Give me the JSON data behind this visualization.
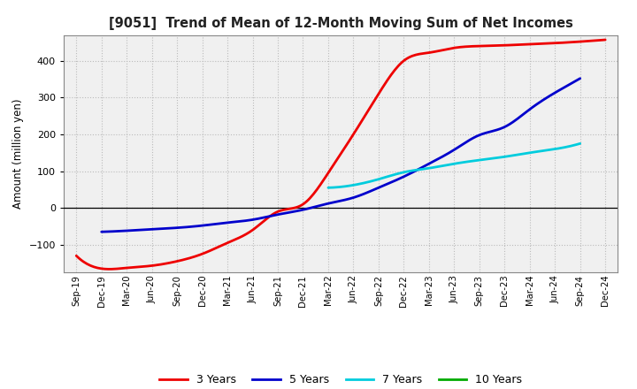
{
  "title": "[9051]  Trend of Mean of 12-Month Moving Sum of Net Incomes",
  "ylabel": "Amount (million yen)",
  "ylim": [
    -175,
    470
  ],
  "yticks": [
    -100,
    0,
    100,
    200,
    300,
    400
  ],
  "background_color": "#ffffff",
  "plot_bg_color": "#f0f0f0",
  "grid_color": "#bbbbbb",
  "x_labels": [
    "Sep-19",
    "Dec-19",
    "Mar-20",
    "Jun-20",
    "Sep-20",
    "Dec-20",
    "Mar-21",
    "Jun-21",
    "Sep-21",
    "Dec-21",
    "Mar-22",
    "Jun-22",
    "Sep-22",
    "Dec-22",
    "Mar-23",
    "Jun-23",
    "Sep-23",
    "Dec-23",
    "Mar-24",
    "Jun-24",
    "Sep-24",
    "Dec-24"
  ],
  "series": {
    "3 Years": {
      "color": "#ee0000",
      "linewidth": 2.0,
      "data_y": [
        -130,
        -165,
        -163,
        -157,
        -145,
        -125,
        -95,
        -60,
        -10,
        10,
        95,
        200,
        310,
        400,
        422,
        435,
        440,
        442,
        445,
        448,
        452,
        457
      ]
    },
    "5 Years": {
      "color": "#0000cc",
      "linewidth": 2.0,
      "data_y": [
        null,
        -65,
        -62,
        -58,
        -54,
        -48,
        -40,
        -32,
        -18,
        -5,
        12,
        28,
        55,
        85,
        120,
        158,
        198,
        220,
        268,
        313,
        352,
        null
      ]
    },
    "7 Years": {
      "color": "#00ccdd",
      "linewidth": 2.0,
      "data_y": [
        null,
        null,
        null,
        null,
        null,
        null,
        null,
        null,
        null,
        null,
        55,
        62,
        78,
        97,
        108,
        120,
        130,
        139,
        150,
        160,
        175,
        null
      ]
    },
    "10 Years": {
      "color": "#00aa00",
      "linewidth": 2.0,
      "data_y": [
        null,
        null,
        null,
        null,
        null,
        null,
        null,
        null,
        null,
        null,
        null,
        null,
        null,
        null,
        null,
        null,
        null,
        null,
        null,
        null,
        null,
        null
      ]
    }
  },
  "legend_order": [
    "3 Years",
    "5 Years",
    "7 Years",
    "10 Years"
  ]
}
